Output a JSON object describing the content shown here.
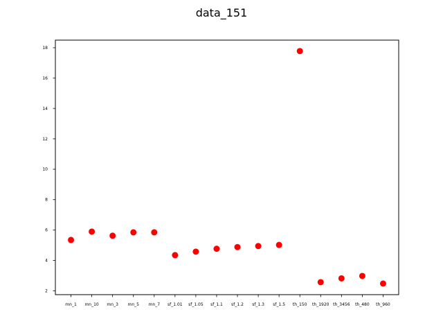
{
  "chart_data": {
    "type": "scatter",
    "title": "data_151",
    "xlabel": "",
    "ylabel": "",
    "categories": [
      "mn_1",
      "mn_10",
      "mn_3",
      "mn_5",
      "mn_7",
      "sf_1.01",
      "sf_1.05",
      "sf_1.1",
      "sf_1.2",
      "sf_1.3",
      "sf_1.5",
      "th_150",
      "th_1920",
      "th_3456",
      "th_480",
      "th_960"
    ],
    "values": [
      5.35,
      5.9,
      5.63,
      5.85,
      5.85,
      4.35,
      4.58,
      4.77,
      4.88,
      4.95,
      5.02,
      17.78,
      2.57,
      2.82,
      2.98,
      2.48
    ],
    "ylim": [
      1.75,
      18.5
    ],
    "yticks": [
      2,
      4,
      6,
      8,
      10,
      12,
      14,
      16,
      18
    ],
    "grid": false,
    "marker_color": "#ff0000"
  }
}
